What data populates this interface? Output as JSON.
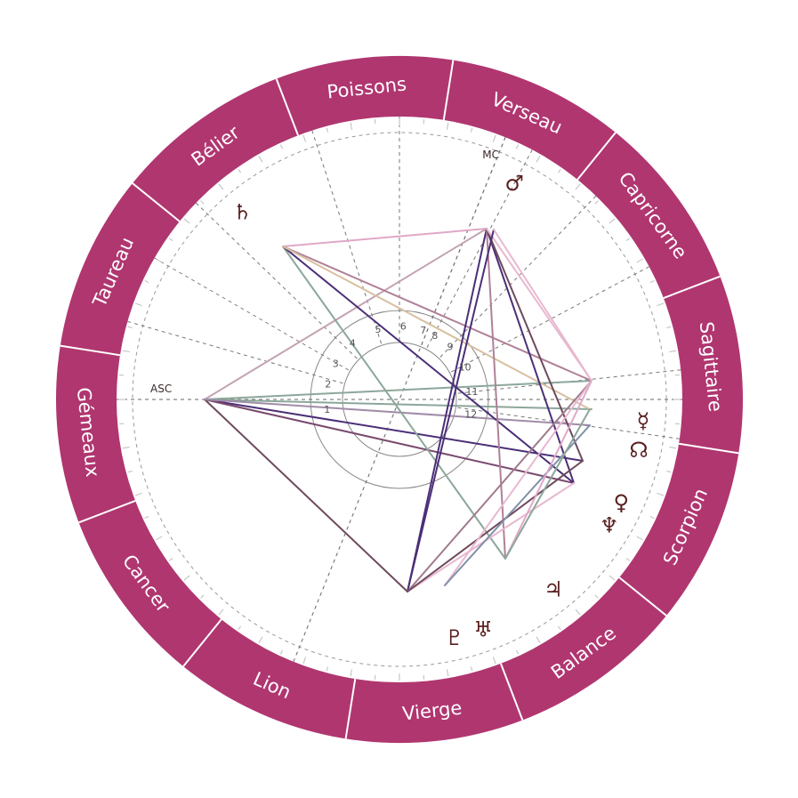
{
  "wheel": {
    "ring_color": "#b03670",
    "center": [
      449,
      449
    ],
    "signs": [
      {
        "label": "Poissons",
        "angle": 96
      },
      {
        "label": "Verseau",
        "angle": 66
      },
      {
        "label": "Capricorne",
        "angle": 36
      },
      {
        "label": "Sagittaire",
        "angle": 6
      },
      {
        "label": "Scorpion",
        "angle": -24
      },
      {
        "label": "Balance",
        "angle": -54
      },
      {
        "label": "Vierge",
        "angle": -84
      },
      {
        "label": "Lion",
        "angle": -114
      },
      {
        "label": "Cancer",
        "angle": -144
      },
      {
        "label": "Gémeaux",
        "angle": -174
      },
      {
        "label": "Taureau",
        "angle": -204
      },
      {
        "label": "Bélier",
        "angle": -234
      }
    ],
    "sign_dividers": [
      81,
      51,
      21,
      -9,
      -39,
      -69,
      -99,
      -129,
      -159,
      -189,
      -219,
      -249
    ],
    "house_cusps": [
      180,
      164,
      150,
      136,
      108,
      90,
      68,
      62,
      46,
      28,
      6,
      -8
    ],
    "axes": {
      "asc_label": "ASC",
      "mc_label": "MC",
      "asc_angle": 180,
      "mc_angle": 68
    },
    "houses": [
      {
        "label": "1",
        "angle": 180
      },
      {
        "label": "2",
        "angle": 160
      },
      {
        "label": "3",
        "angle": 143
      },
      {
        "label": "4",
        "angle": 122
      },
      {
        "label": "5",
        "angle": 99
      },
      {
        "label": "6",
        "angle": 79
      },
      {
        "label": "7",
        "angle": 63
      },
      {
        "label": "8",
        "angle": 53
      },
      {
        "label": "9",
        "angle": 38
      },
      {
        "label": "10",
        "angle": 18
      },
      {
        "label": "11",
        "angle": -2
      },
      {
        "label": "12",
        "angle": -20
      }
    ],
    "planets": [
      {
        "name": "saturn",
        "glyph": "♄",
        "angle": 130,
        "r": 275
      },
      {
        "name": "mars",
        "glyph": "♂",
        "angle": 62,
        "r": 275
      },
      {
        "name": "mercury",
        "glyph": "☿",
        "angle": -5,
        "r": 275
      },
      {
        "name": "node",
        "glyph": "☊",
        "angle": -12,
        "r": 275
      },
      {
        "name": "venus",
        "glyph": "♀",
        "angle": -25,
        "r": 275
      },
      {
        "name": "neptune",
        "glyph": "♆",
        "angle": -31,
        "r": 275
      },
      {
        "name": "jupiter",
        "glyph": "♃",
        "angle": -51,
        "r": 275
      },
      {
        "name": "uranus",
        "glyph": "♅",
        "angle": -70,
        "r": 275
      },
      {
        "name": "pluto",
        "glyph": "♇",
        "angle": -77,
        "r": 275
      }
    ],
    "aspects": [
      {
        "from": [
          230,
          449
        ],
        "to": [
          547,
          257
        ],
        "color": "#c3a3b3"
      },
      {
        "from": [
          230,
          449
        ],
        "to": [
          665,
          428
        ],
        "color": "#8ca79a"
      },
      {
        "from": [
          230,
          449
        ],
        "to": [
          665,
          460
        ],
        "color": "#8ca79a"
      },
      {
        "from": [
          230,
          449
        ],
        "to": [
          655,
          518
        ],
        "color": "#4b2f78"
      },
      {
        "from": [
          230,
          449
        ],
        "to": [
          645,
          543
        ],
        "color": "#7a4a6e"
      },
      {
        "from": [
          230,
          449
        ],
        "to": [
          458,
          665
        ],
        "color": "#6e4a5e"
      },
      {
        "from": [
          230,
          449
        ],
        "to": [
          663,
          478
        ],
        "color": "#a08ca8"
      },
      {
        "from": [
          318,
          277
        ],
        "to": [
          547,
          257
        ],
        "color": "#e0a8c8"
      },
      {
        "from": [
          318,
          277
        ],
        "to": [
          665,
          428
        ],
        "color": "#b08098"
      },
      {
        "from": [
          318,
          277
        ],
        "to": [
          568,
          628
        ],
        "color": "#8ca79a"
      },
      {
        "from": [
          318,
          277
        ],
        "to": [
          645,
          543
        ],
        "color": "#4b2f78"
      },
      {
        "from": [
          318,
          277
        ],
        "to": [
          663,
          460
        ],
        "color": "#d8c0a0"
      },
      {
        "from": [
          547,
          257
        ],
        "to": [
          458,
          665
        ],
        "color": "#4b2f78"
      },
      {
        "from": [
          547,
          257
        ],
        "to": [
          568,
          628
        ],
        "color": "#b08098"
      },
      {
        "from": [
          547,
          257
        ],
        "to": [
          645,
          543
        ],
        "color": "#4b2f78"
      },
      {
        "from": [
          547,
          257
        ],
        "to": [
          655,
          518
        ],
        "color": "#6e4a5e"
      },
      {
        "from": [
          547,
          257
        ],
        "to": [
          665,
          428
        ],
        "color": "#e8b8d0"
      },
      {
        "from": [
          458,
          665
        ],
        "to": [
          555,
          258
        ],
        "color": "#4b2f78"
      },
      {
        "from": [
          458,
          665
        ],
        "to": [
          665,
          428
        ],
        "color": "#a07a8e"
      },
      {
        "from": [
          458,
          665
        ],
        "to": [
          645,
          543
        ],
        "color": "#e8b8d0"
      },
      {
        "from": [
          458,
          665
        ],
        "to": [
          655,
          518
        ],
        "color": "#6e4a5e"
      },
      {
        "from": [
          500,
          658
        ],
        "to": [
          665,
          428
        ],
        "color": "#e8b8d0"
      },
      {
        "from": [
          500,
          658
        ],
        "to": [
          663,
          478
        ],
        "color": "#8090a8"
      },
      {
        "from": [
          568,
          628
        ],
        "to": [
          665,
          428
        ],
        "color": "#e0a8c8"
      },
      {
        "from": [
          568,
          628
        ],
        "to": [
          663,
          460
        ],
        "color": "#8ca79a"
      },
      {
        "from": [
          555,
          258
        ],
        "to": [
          665,
          428
        ],
        "color": "#e8b8d0"
      }
    ]
  }
}
